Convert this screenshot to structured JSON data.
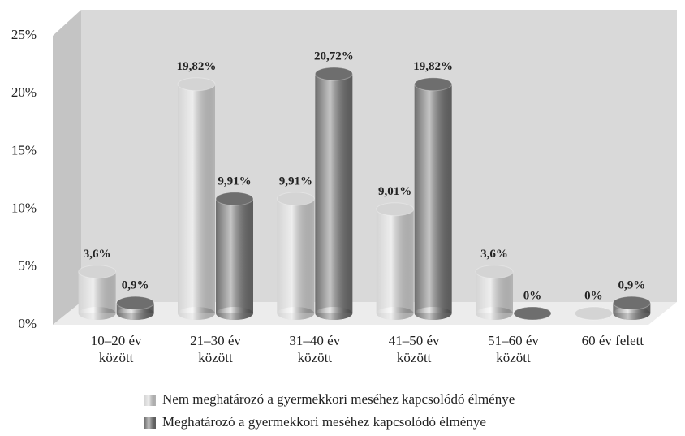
{
  "chart_data": {
    "type": "bar3d",
    "categories": [
      [
        "10–20 év",
        "között"
      ],
      [
        "21–30 év",
        "között"
      ],
      [
        "31–40 év",
        "között"
      ],
      [
        "41–50 év",
        "között"
      ],
      [
        "51–60 év",
        "között"
      ],
      [
        "60 év felett"
      ]
    ],
    "series": [
      {
        "name": "Nem meghatározó a gyermekkori meséhez kapcsolódó élménye",
        "color": "#d4d4d4",
        "values": [
          3.6,
          19.82,
          9.91,
          9.01,
          3.6,
          0
        ],
        "value_labels": [
          "3,6%",
          "19,82%",
          "9,91%",
          "9,01%",
          "3,6%",
          "0%"
        ]
      },
      {
        "name": "Meghatározó a gyermekkori meséhez kapcsolódó élménye",
        "color": "#6e6e6e",
        "values": [
          0.9,
          9.91,
          20.72,
          19.82,
          0,
          0.9
        ],
        "value_labels": [
          "0,9%",
          "9,91%",
          "20,72%",
          "19,82%",
          "0%",
          "0,9%"
        ]
      }
    ],
    "ylim": [
      0,
      25
    ],
    "yticks": [
      {
        "value": 0,
        "label": "0%"
      },
      {
        "value": 5,
        "label": "5%"
      },
      {
        "value": 10,
        "label": "10%"
      },
      {
        "value": 15,
        "label": "15%"
      },
      {
        "value": 20,
        "label": "20%"
      },
      {
        "value": 25,
        "label": "25%"
      }
    ],
    "grid": false
  }
}
